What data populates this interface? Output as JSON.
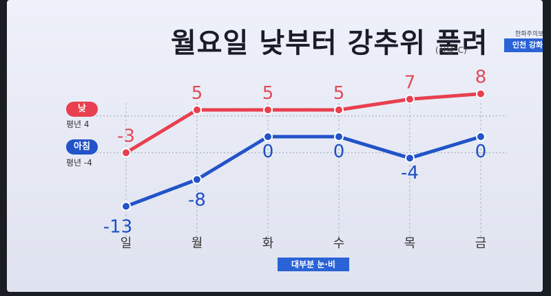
{
  "header": {
    "title": "월요일 낮부터 강추위 풀려",
    "unit": "(서울°C)",
    "warning_title": "한파주의보",
    "warning_label": "인천 강화"
  },
  "legend": {
    "day_label": "낮",
    "day_avg": "평년 4",
    "morning_label": "아침",
    "morning_avg": "평년 -4"
  },
  "footnote": "대부분 눈·비",
  "colors": {
    "day": "#e8404f",
    "morning": "#2253c9",
    "day_text": "#e14a56",
    "morning_text": "#1e4fc4"
  },
  "chart_data": {
    "type": "line",
    "categories": [
      "일",
      "월",
      "화",
      "수",
      "목",
      "금"
    ],
    "series": [
      {
        "name": "낮",
        "values": [
          -3,
          5,
          5,
          5,
          7,
          8
        ]
      },
      {
        "name": "아침",
        "values": [
          -13,
          -8,
          0,
          0,
          -4,
          0
        ]
      }
    ],
    "reference_lines": [
      {
        "label": "평년 4",
        "value": 4
      },
      {
        "label": "평년 -4",
        "value": -4
      }
    ],
    "ylim": [
      -14,
      9
    ],
    "grid": "vertical dashed guides per category"
  }
}
